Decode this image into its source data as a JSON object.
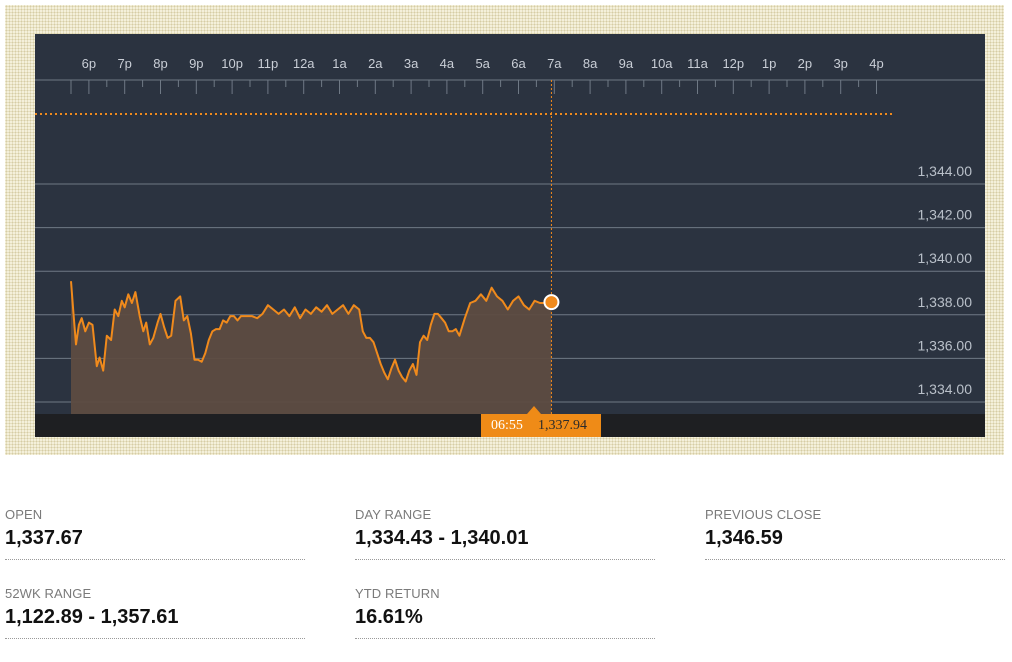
{
  "chart_data": {
    "type": "area",
    "x_tick_labels": [
      "6p",
      "7p",
      "8p",
      "9p",
      "10p",
      "11p",
      "12a",
      "1a",
      "2a",
      "3a",
      "4a",
      "5a",
      "6a",
      "7a",
      "8a",
      "9a",
      "10a",
      "11a",
      "12p",
      "1p",
      "2p",
      "3p",
      "4p"
    ],
    "y_tick_labels": [
      "1,344.00",
      "1,342.00",
      "1,340.00",
      "1,338.00",
      "1,336.00",
      "1,334.00"
    ],
    "y_ticks": [
      1344,
      1342,
      1340,
      1338,
      1336,
      1334
    ],
    "ylim": [
      1332.9,
      1348.8
    ],
    "xlim_hours": [
      17.5,
      40.85
    ],
    "previous_close": 1346.59,
    "current": {
      "time_label": "06:55",
      "value_label": "1,337.94",
      "x_hours": 30.92,
      "y": 1337.94
    },
    "series": [
      {
        "x": [
          17.5,
          17.57,
          17.64,
          17.72,
          17.8,
          17.9,
          18.0,
          18.1,
          18.22,
          18.3,
          18.4,
          18.5,
          18.62,
          18.72,
          18.82,
          18.92,
          19.0,
          19.1,
          19.2,
          19.3,
          19.42,
          19.52,
          19.6,
          19.7,
          19.8,
          19.92,
          20.0,
          20.1,
          20.2,
          20.3,
          20.42,
          20.55,
          20.65,
          20.75,
          20.85,
          20.95,
          21.05,
          21.15,
          21.25,
          21.35,
          21.45,
          21.55,
          21.65,
          21.75,
          21.85,
          21.95,
          22.05,
          22.15,
          22.25,
          22.4,
          22.55,
          22.7,
          22.85,
          23.0,
          23.15,
          23.3,
          23.45,
          23.6,
          23.75,
          23.9,
          24.05,
          24.2,
          24.35,
          24.5,
          24.65,
          24.8,
          24.95,
          25.1,
          25.25,
          25.4,
          25.55,
          25.65,
          25.75,
          25.85,
          25.95,
          26.05,
          26.15,
          26.25,
          26.35,
          26.45,
          26.55,
          26.65,
          26.75,
          26.85,
          26.95,
          27.05,
          27.15,
          27.25,
          27.35,
          27.45,
          27.55,
          27.65,
          27.75,
          27.85,
          27.95,
          28.05,
          28.15,
          28.25,
          28.35,
          28.5,
          28.65,
          28.8,
          28.95,
          29.1,
          29.25,
          29.4,
          29.55,
          29.7,
          29.85,
          30.0,
          30.15,
          30.3,
          30.45,
          30.6,
          30.75,
          30.92
        ],
        "y": [
          1338.9,
          1337.4,
          1336.0,
          1336.9,
          1337.2,
          1336.6,
          1337.0,
          1336.9,
          1335.0,
          1335.4,
          1334.8,
          1336.4,
          1336.2,
          1337.6,
          1337.3,
          1338.0,
          1337.7,
          1338.3,
          1337.9,
          1338.4,
          1337.3,
          1336.6,
          1337.0,
          1336.0,
          1336.3,
          1337.0,
          1337.4,
          1336.8,
          1336.3,
          1336.4,
          1338.0,
          1338.2,
          1337.1,
          1337.3,
          1336.5,
          1335.3,
          1335.3,
          1335.2,
          1335.6,
          1336.2,
          1336.6,
          1336.7,
          1336.7,
          1337.1,
          1337.0,
          1337.3,
          1337.3,
          1337.1,
          1337.3,
          1337.3,
          1337.3,
          1337.2,
          1337.4,
          1337.8,
          1337.6,
          1337.4,
          1337.6,
          1337.3,
          1337.7,
          1337.2,
          1337.6,
          1337.4,
          1337.7,
          1337.5,
          1337.8,
          1337.4,
          1337.6,
          1337.8,
          1337.4,
          1337.8,
          1337.6,
          1336.6,
          1336.3,
          1336.3,
          1336.1,
          1335.6,
          1335.1,
          1334.7,
          1334.4,
          1334.9,
          1335.3,
          1334.8,
          1334.5,
          1334.3,
          1334.8,
          1335.1,
          1334.6,
          1336.1,
          1336.4,
          1336.2,
          1336.9,
          1337.4,
          1337.4,
          1337.2,
          1337.0,
          1336.6,
          1336.6,
          1336.7,
          1336.4,
          1337.2,
          1337.9,
          1338.0,
          1338.3,
          1338.0,
          1338.6,
          1338.2,
          1338.0,
          1337.6,
          1338.0,
          1338.2,
          1337.8,
          1337.6,
          1338.0,
          1337.9,
          1337.9,
          1337.94
        ]
      }
    ]
  },
  "stats": [
    {
      "label": "OPEN",
      "value": "1,337.67"
    },
    {
      "label": "DAY RANGE",
      "value": "1,334.43 - 1,340.01"
    },
    {
      "label": "PREVIOUS CLOSE",
      "value": "1,346.59"
    },
    {
      "label": "52WK RANGE",
      "value": "1,122.89 - 1,357.61"
    },
    {
      "label": "YTD RETURN",
      "value": "16.61%"
    }
  ],
  "colors": {
    "panel": "#2b3340",
    "line": "#f08a1c",
    "area": "#5d4c41",
    "grid": "#6f7985",
    "axis": "#2a2a2a",
    "marker_fill": "#f08a1c",
    "badge": "#ef8b17"
  }
}
